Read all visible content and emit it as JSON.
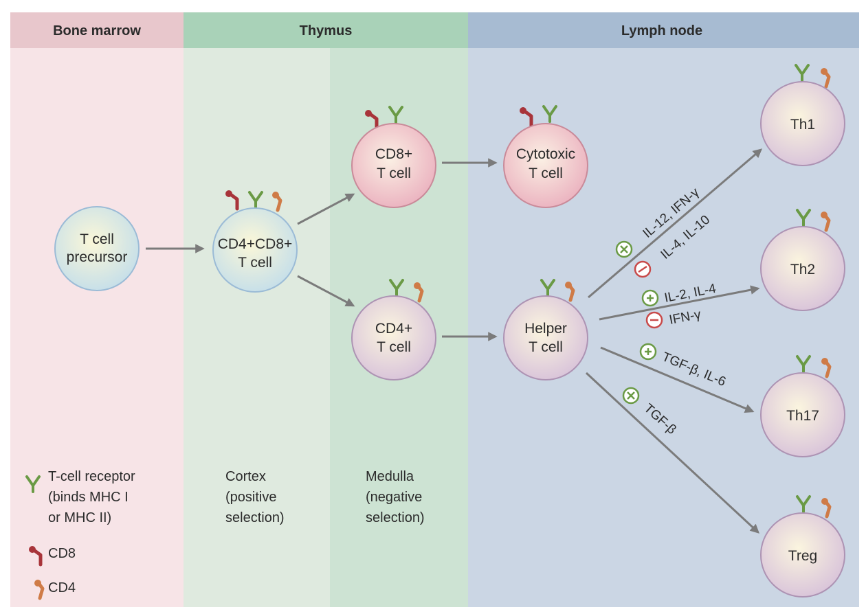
{
  "regions": {
    "bone_marrow": {
      "title": "Bone marrow",
      "bg": "#f7e4e7",
      "header_bg": "#e8c7cc"
    },
    "thymus": {
      "title": "Thymus",
      "cortex_bg": "#dfeadf",
      "medulla_bg": "#cde3d3",
      "header_bg": "#a9d2b8"
    },
    "lymph_node": {
      "title": "Lymph node",
      "bg": "#cbd6e4",
      "header_bg": "#a7bbd2"
    }
  },
  "cells": {
    "precursor": {
      "line1": "T cell",
      "line2": "precursor",
      "fill": "#d5e8ef"
    },
    "double_positive": {
      "line1": "CD4+CD8+",
      "line2": "T cell",
      "fill": "#d5e8ef"
    },
    "cd8": {
      "line1": "CD8+",
      "line2": "T cell",
      "fill": "#f0c4cd"
    },
    "cd4": {
      "line1": "CD4+",
      "line2": "T cell",
      "fill": "#e3d2e2"
    },
    "cytotoxic": {
      "line1": "Cytotoxic",
      "line2": "T cell",
      "fill": "#f0c4cd"
    },
    "helper": {
      "line1": "Helper",
      "line2": "T cell",
      "fill": "#e3d2e2"
    },
    "th1": {
      "label": "Th1",
      "fill": "#e3d2e2"
    },
    "th2": {
      "label": "Th2",
      "fill": "#e3d2e2"
    },
    "th17": {
      "label": "Th17",
      "fill": "#e3d2e2"
    },
    "treg": {
      "label": "Treg",
      "fill": "#e3d2e2"
    }
  },
  "cytokines": {
    "th1_plus": "IL-12, IFN-γ",
    "th1_minus": "IL-4, IL-10",
    "th2_plus": "IL-2, IL-4",
    "th2_minus": "IFN-γ",
    "th17_plus": "TGF-β, IL-6",
    "treg_plus": "TGF-β"
  },
  "legend": {
    "tcr_line1": "T-cell receptor",
    "tcr_line2": "(binds MHC I",
    "tcr_line3": "or MHC II)",
    "cd8": "CD8",
    "cd4": "CD4"
  },
  "zones": {
    "cortex_line1": "Cortex",
    "cortex_line2": "(positive",
    "cortex_line3": "selection)",
    "medulla_line1": "Medulla",
    "medulla_line2": "(negative",
    "medulla_line3": "selection)"
  },
  "colors": {
    "tcr": "#6a9a45",
    "cd8": "#a8343a",
    "cd4": "#cf7b47",
    "arrow": "#7b7b7b",
    "plus": "#6a9a45",
    "minus": "#c84a4a"
  }
}
